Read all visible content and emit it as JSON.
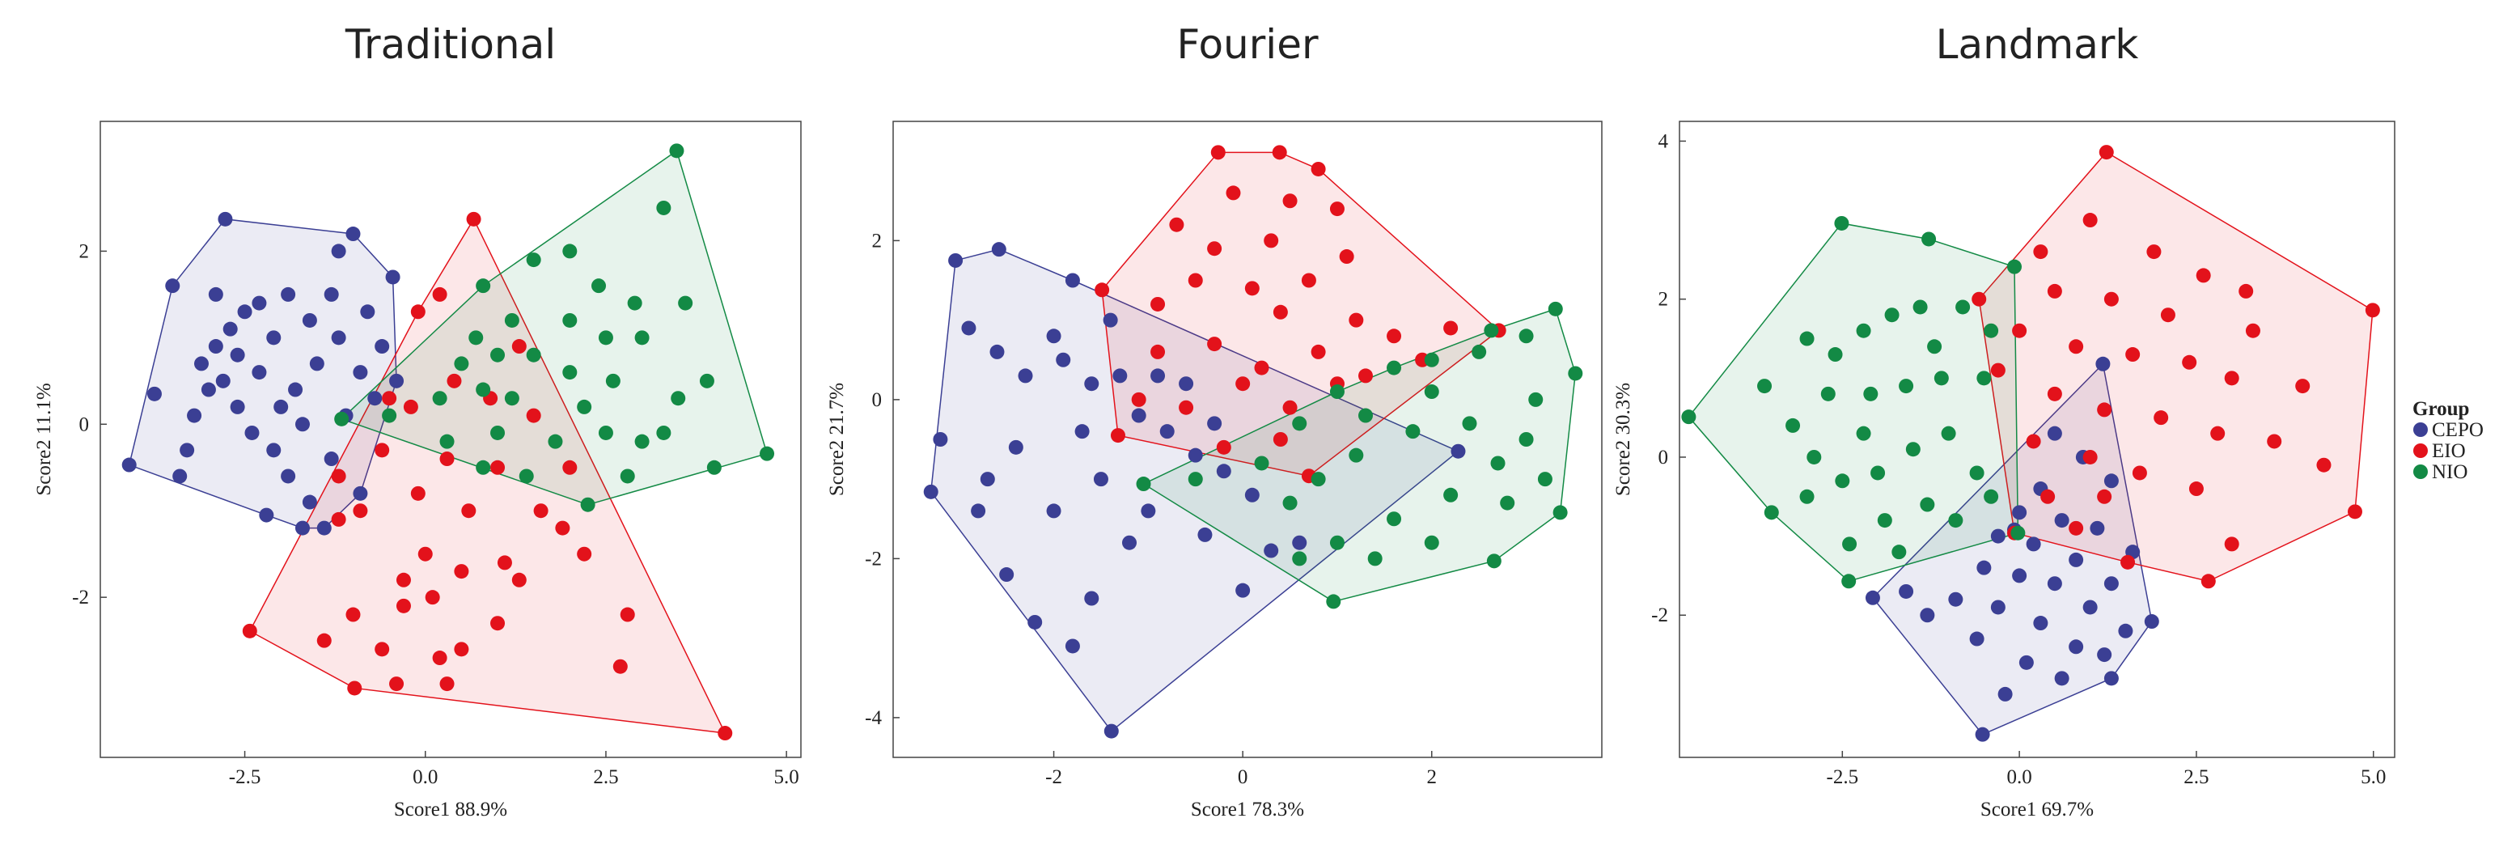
{
  "chart_data": [
    {
      "type": "scatter",
      "title": "Traditional",
      "x_label": "Score1 88.9%",
      "y_label": "Score2 11.1%",
      "hull": true,
      "xlim": [
        -4.5,
        5.2
      ],
      "ylim": [
        -3.85,
        3.5
      ],
      "xticks": [
        -2.5,
        {
          "value": 0,
          "label": "0.0"
        },
        2.5,
        {
          "value": 5,
          "label": "5.0"
        }
      ],
      "yticks": [
        -2,
        0,
        2
      ],
      "series": [
        {
          "name": "CEPO",
          "color": "#3b3f94",
          "x": [
            -4.1,
            -2.77,
            -1.0,
            -0.45,
            -3.5,
            -3.75,
            -3.4,
            -3.2,
            -3.0,
            -2.9,
            -2.7,
            -2.5,
            -2.3,
            -2.1,
            -1.9,
            -1.6,
            -1.3,
            -1.2,
            -0.8,
            -0.6,
            -0.9,
            -1.5,
            -1.8,
            -2.0,
            -2.3,
            -2.6,
            -2.8,
            -3.1,
            -2.4,
            -2.1,
            -1.9,
            -1.6,
            -2.2,
            -1.7,
            -1.3,
            -1.1,
            -0.7,
            -0.9,
            -1.4,
            -2.6,
            -3.3,
            -1.2,
            -0.4,
            -1.7,
            -2.9
          ],
          "y": [
            -0.47,
            2.37,
            2.2,
            1.7,
            1.6,
            0.35,
            -0.6,
            0.1,
            0.4,
            0.9,
            1.1,
            1.3,
            1.4,
            1.0,
            1.5,
            1.2,
            1.5,
            2.0,
            1.3,
            0.9,
            0.6,
            0.7,
            0.4,
            0.2,
            0.6,
            0.8,
            0.5,
            0.7,
            -0.1,
            -0.3,
            -0.6,
            -0.9,
            -1.05,
            -1.2,
            -0.4,
            0.1,
            0.3,
            -0.8,
            -1.2,
            0.2,
            -0.3,
            1.0,
            0.5,
            0.0,
            1.5
          ]
        },
        {
          "name": "EIO",
          "color": "#e3121b",
          "x": [
            0.67,
            -2.43,
            -0.98,
            4.15,
            -1.4,
            0.0,
            0.3,
            -0.2,
            0.4,
            -0.5,
            -0.6,
            -0.9,
            -1.2,
            -1.2,
            -0.3,
            0.1,
            0.5,
            1.1,
            1.3,
            1.0,
            0.5,
            -0.3,
            -0.6,
            -0.4,
            1.9,
            2.2,
            2.8,
            2.7,
            1.6,
            1.0,
            0.6,
            -0.1,
            0.2,
            -0.1,
            0.9,
            1.3,
            1.5,
            2.0,
            -1.0,
            0.2,
            0.3
          ],
          "y": [
            2.37,
            -2.39,
            -3.05,
            -3.57,
            -2.5,
            -1.5,
            -0.4,
            0.2,
            0.5,
            0.3,
            -0.3,
            -1.0,
            -1.1,
            -0.6,
            -1.8,
            -2.0,
            -1.7,
            -1.6,
            -1.8,
            -2.3,
            -2.6,
            -2.1,
            -2.6,
            -3.0,
            -1.2,
            -1.5,
            -2.2,
            -2.8,
            -1.0,
            -0.5,
            -1.0,
            1.3,
            1.5,
            -0.8,
            0.3,
            0.9,
            0.1,
            -0.5,
            -2.2,
            -2.7,
            -3.0
          ]
        },
        {
          "name": "NIO",
          "color": "#138a45",
          "x": [
            3.48,
            4.73,
            2.25,
            -1.16,
            3.3,
            2.0,
            1.5,
            0.8,
            2.4,
            2.9,
            3.6,
            3.0,
            2.5,
            2.0,
            1.2,
            0.7,
            1.5,
            2.0,
            2.6,
            3.5,
            3.9,
            4.0,
            3.0,
            2.5,
            2.2,
            1.8,
            1.2,
            0.8,
            0.5,
            0.2,
            -0.5,
            1.0,
            1.4,
            0.8,
            3.3,
            2.8,
            1.0,
            0.3
          ],
          "y": [
            3.16,
            -0.34,
            -0.93,
            0.06,
            2.5,
            2.0,
            1.9,
            1.6,
            1.6,
            1.4,
            1.4,
            1.0,
            1.0,
            1.2,
            1.2,
            1.0,
            0.8,
            0.6,
            0.5,
            0.3,
            0.5,
            -0.5,
            -0.2,
            -0.1,
            0.2,
            -0.2,
            0.3,
            0.4,
            0.7,
            0.3,
            0.1,
            -0.1,
            -0.6,
            -0.5,
            -0.1,
            -0.6,
            0.8,
            -0.2
          ]
        }
      ]
    },
    {
      "type": "scatter",
      "title": "Fourier",
      "x_label": "Score1 78.3%",
      "y_label": "Score2 21.7%",
      "hull": true,
      "xlim": [
        -3.7,
        3.8
      ],
      "ylim": [
        -4.5,
        3.5
      ],
      "xticks": [
        -2,
        0,
        2
      ],
      "yticks": [
        -4,
        -2,
        0,
        2
      ],
      "series": [
        {
          "name": "CEPO",
          "color": "#3b3f94",
          "x": [
            -3.04,
            -2.58,
            -3.3,
            -1.39,
            2.28,
            -1.8,
            -1.4,
            -3.2,
            -2.9,
            -2.6,
            -2.3,
            -2.0,
            -1.9,
            -1.6,
            -1.7,
            -2.4,
            -2.8,
            -2.5,
            -2.2,
            -1.8,
            -1.6,
            -1.2,
            -1.0,
            -0.8,
            -0.5,
            -0.2,
            0.1,
            0.3,
            0.0,
            -0.4,
            -1.1,
            -1.3,
            -0.6,
            -0.3,
            0.6,
            -2.0,
            -2.7,
            -1.5,
            -0.9
          ],
          "y": [
            1.75,
            1.89,
            -1.16,
            -4.17,
            -0.65,
            1.5,
            1.0,
            -0.5,
            0.9,
            0.6,
            0.3,
            0.8,
            0.5,
            0.2,
            -0.4,
            -0.6,
            -1.4,
            -2.2,
            -2.8,
            -3.1,
            -2.5,
            -1.8,
            -1.4,
            -0.4,
            -0.7,
            -0.9,
            -1.2,
            -1.9,
            -2.4,
            -1.7,
            -0.2,
            0.3,
            0.2,
            -0.3,
            -1.8,
            -1.4,
            -1.0,
            -1.0,
            0.3
          ]
        },
        {
          "name": "EIO",
          "color": "#e3121b",
          "x": [
            -0.26,
            0.39,
            2.71,
            0.7,
            -1.32,
            -1.49,
            -0.1,
            0.5,
            1.0,
            0.3,
            -0.3,
            1.1,
            0.7,
            0.1,
            -0.5,
            -0.9,
            0.4,
            1.2,
            1.6,
            2.2,
            0.8,
            0.2,
            -0.3,
            -0.9,
            -1.1,
            -0.6,
            0.0,
            0.5,
            1.0,
            -0.2,
            0.4,
            1.3,
            1.9,
            -0.7,
            0.8
          ],
          "y": [
            3.11,
            3.11,
            0.87,
            -0.96,
            -0.45,
            1.38,
            2.6,
            2.5,
            2.4,
            2.0,
            1.9,
            1.8,
            1.5,
            1.4,
            1.5,
            1.2,
            1.1,
            1.0,
            0.8,
            0.9,
            0.6,
            0.4,
            0.7,
            0.6,
            0.0,
            -0.1,
            0.2,
            -0.1,
            0.2,
            -0.6,
            -0.5,
            0.3,
            0.5,
            2.2,
            2.9
          ]
        },
        {
          "name": "NIO",
          "color": "#138a45",
          "x": [
            3.31,
            3.52,
            3.36,
            2.66,
            0.96,
            -1.05,
            2.63,
            3.0,
            2.5,
            2.0,
            1.6,
            1.0,
            0.6,
            0.2,
            -0.5,
            0.5,
            1.2,
            1.8,
            2.4,
            3.0,
            3.2,
            2.8,
            2.2,
            1.6,
            1.0,
            0.6,
            1.4,
            2.0,
            2.7,
            3.1,
            2.0,
            1.3,
            0.8
          ],
          "y": [
            1.14,
            0.33,
            -1.42,
            -2.03,
            -2.54,
            -1.06,
            0.87,
            0.8,
            0.6,
            0.5,
            0.4,
            0.1,
            -0.3,
            -0.8,
            -1.0,
            -1.3,
            -0.7,
            -0.4,
            -0.3,
            -0.5,
            -1.0,
            -1.3,
            -1.2,
            -1.5,
            -1.8,
            -2.0,
            -2.0,
            -1.8,
            -0.8,
            0.0,
            0.1,
            -0.2,
            -1.0
          ]
        }
      ]
    },
    {
      "type": "scatter",
      "title": "Landmark",
      "x_label": "Score1 69.7%",
      "y_label": "Score2 30.3%",
      "hull": true,
      "xlim": [
        -4.8,
        5.3
      ],
      "ylim": [
        -3.8,
        4.25
      ],
      "xticks": [
        -2.5,
        {
          "value": 0,
          "label": "0.0"
        },
        2.5,
        {
          "value": 5,
          "label": "5.0"
        }
      ],
      "yticks": [
        -2,
        0,
        2,
        4
      ],
      "legend_title": "Group",
      "legend": "right",
      "series": [
        {
          "name": "CEPO",
          "color": "#3b3f94",
          "x": [
            1.18,
            1.87,
            1.3,
            -0.52,
            -2.07,
            -0.07,
            0.5,
            0.9,
            1.3,
            0.3,
            0.0,
            0.6,
            1.1,
            1.6,
            -0.3,
            0.2,
            0.8,
            1.3,
            -0.5,
            0.0,
            0.5,
            1.0,
            1.5,
            -0.9,
            -0.3,
            0.3,
            0.8,
            -1.3,
            -0.6,
            0.1,
            0.6,
            -0.2,
            1.2,
            -1.6
          ],
          "y": [
            1.18,
            -2.08,
            -2.8,
            -3.51,
            -1.78,
            -0.92,
            0.3,
            0.0,
            -0.3,
            -0.4,
            -0.7,
            -0.8,
            -0.9,
            -1.2,
            -1.0,
            -1.1,
            -1.3,
            -1.6,
            -1.4,
            -1.5,
            -1.6,
            -1.9,
            -2.2,
            -1.8,
            -1.9,
            -2.1,
            -2.4,
            -2.0,
            -2.3,
            -2.6,
            -2.8,
            -3.0,
            -2.5,
            -1.7
          ]
        },
        {
          "name": "EIO",
          "color": "#e3121b",
          "x": [
            1.23,
            4.99,
            4.74,
            2.67,
            1.53,
            -0.07,
            -0.57,
            0.3,
            1.0,
            1.9,
            2.6,
            3.2,
            0.5,
            1.3,
            2.1,
            3.3,
            0.0,
            0.8,
            1.6,
            2.4,
            3.0,
            4.0,
            -0.3,
            0.5,
            1.2,
            2.0,
            2.8,
            3.6,
            0.2,
            1.0,
            1.7,
            2.5,
            4.3,
            0.4,
            1.2,
            3.0,
            0.8
          ],
          "y": [
            3.86,
            1.86,
            -0.69,
            -1.57,
            -1.33,
            -0.96,
            2.0,
            2.6,
            3.0,
            2.6,
            2.3,
            2.1,
            2.1,
            2.0,
            1.8,
            1.6,
            1.6,
            1.4,
            1.3,
            1.2,
            1.0,
            0.9,
            1.1,
            0.8,
            0.6,
            0.5,
            0.3,
            0.2,
            0.2,
            0.0,
            -0.2,
            -0.4,
            -0.1,
            -0.5,
            -0.5,
            -1.1,
            -0.9
          ]
        },
        {
          "name": "NIO",
          "color": "#138a45",
          "x": [
            -2.51,
            -4.67,
            -2.41,
            -0.02,
            -0.07,
            -1.28,
            -3.6,
            -3.5,
            -3.0,
            -2.6,
            -2.2,
            -1.8,
            -1.4,
            -0.8,
            -0.4,
            -0.5,
            -1.1,
            -1.6,
            -2.1,
            -2.7,
            -3.2,
            -2.9,
            -2.5,
            -2.0,
            -1.5,
            -1.0,
            -0.6,
            -1.3,
            -1.9,
            -2.4,
            -3.0,
            -1.7,
            -0.9,
            -0.4,
            -2.2,
            -1.2
          ],
          "y": [
            2.96,
            0.51,
            -1.57,
            -0.96,
            2.41,
            2.76,
            0.9,
            -0.7,
            1.5,
            1.3,
            1.6,
            1.8,
            1.9,
            1.9,
            1.6,
            1.0,
            1.0,
            0.9,
            0.8,
            0.8,
            0.4,
            0.0,
            -0.3,
            -0.2,
            0.1,
            0.3,
            -0.2,
            -0.6,
            -0.8,
            -1.1,
            -0.5,
            -1.2,
            -0.8,
            -0.5,
            0.3,
            1.4
          ]
        }
      ]
    }
  ]
}
